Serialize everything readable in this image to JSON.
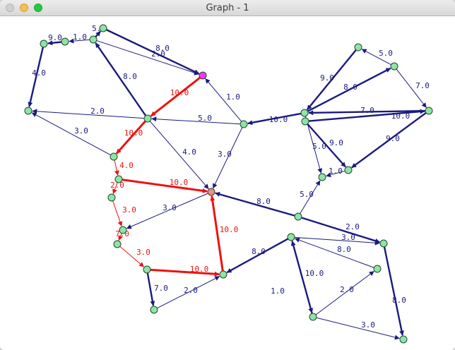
{
  "window": {
    "title": "Graph - 1"
  },
  "colors": {
    "edge": "#1a1a80",
    "path": "#ee1111",
    "node": "#8ee4a6",
    "node_stroke": "#1f4a2c",
    "source": "#ff33ff",
    "target": "#f08a86"
  },
  "edges": [
    {
      "label": "8.0",
      "path": false
    },
    {
      "label": "2.0",
      "path": false
    },
    {
      "label": "5.0",
      "path": false
    },
    {
      "label": "1.0",
      "path": false
    },
    {
      "label": "9.0",
      "path": false
    },
    {
      "label": "4.0",
      "path": false
    },
    {
      "label": "8.0",
      "path": false
    },
    {
      "label": "2.0",
      "path": false
    },
    {
      "label": "3.0",
      "path": false
    },
    {
      "label": "4.0",
      "path": false
    },
    {
      "label": "5.0",
      "path": false
    },
    {
      "label": "1.0",
      "path": false
    },
    {
      "label": "3.0",
      "path": false
    },
    {
      "label": "10.0",
      "path": false
    },
    {
      "label": "9.0",
      "path": false
    },
    {
      "label": "5.0",
      "path": false
    },
    {
      "label": "7.0",
      "path": false
    },
    {
      "label": "8.0",
      "path": false
    },
    {
      "label": "7.0",
      "path": false
    },
    {
      "label": "5.0",
      "path": false
    },
    {
      "label": "9.0",
      "path": false
    },
    {
      "label": "10.0",
      "path": false
    },
    {
      "label": "1.0",
      "path": false
    },
    {
      "label": "5.0",
      "path": false
    },
    {
      "label": "9.0",
      "path": false
    },
    {
      "label": "3.0",
      "path": false
    },
    {
      "label": "8.0",
      "path": false
    },
    {
      "label": "2.0",
      "path": false
    },
    {
      "label": "3.0",
      "path": false
    },
    {
      "label": "8.0",
      "path": false
    },
    {
      "label": "10.0",
      "path": false
    },
    {
      "label": "1.0",
      "path": false
    },
    {
      "label": "2.0",
      "path": false
    },
    {
      "label": "8.0",
      "path": false
    },
    {
      "label": "3.0",
      "path": false
    },
    {
      "label": "7.0",
      "path": false
    },
    {
      "label": "2.0",
      "path": false
    },
    {
      "label": "8.0",
      "path": false
    },
    {
      "label": "10.0",
      "path": true
    },
    {
      "label": "10.0",
      "path": true
    },
    {
      "label": "4.0",
      "path": true
    },
    {
      "label": "2.0",
      "path": true
    },
    {
      "label": "10.0",
      "path": true
    },
    {
      "label": "3.0",
      "path": true
    },
    {
      "label": "7.0",
      "path": true
    },
    {
      "label": "3.0",
      "path": true
    },
    {
      "label": "10.0",
      "path": true
    },
    {
      "label": "10.0",
      "path": true
    }
  ]
}
